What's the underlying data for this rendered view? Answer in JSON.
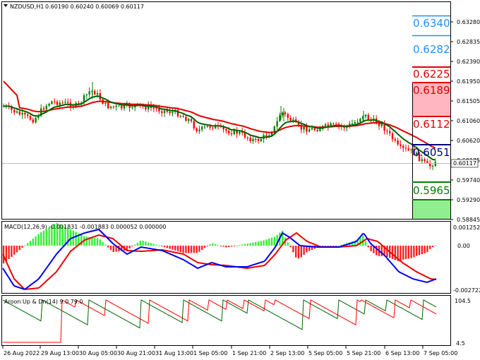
{
  "main_header": {
    "symbol": "NZDUSD,H1",
    "ohlc": "0.60190 0.60240 0.60069 0.60117"
  },
  "macd_header": "MACD(12,26,9) -0.001831 -0.001883 0.000052 0.000000",
  "aroon_header": "Aroon Up & Dn(14) 9.0 79.0",
  "price_axis": {
    "ticks": [
      "0.63280",
      "0.62835",
      "0.62390",
      "0.61950",
      "0.61505",
      "0.61060",
      "0.60620",
      "0.60175",
      "0.59740",
      "0.59290",
      "0.58845"
    ],
    "current": "0.60117"
  },
  "macd_axis": [
    "0.001252",
    "0.00",
    "-0.002722"
  ],
  "aroon_axis": [
    "104.5",
    "4.5"
  ],
  "time_axis": [
    "26 Aug 2022",
    "29 Aug 13:00",
    "30 Aug 05:00",
    "30 Aug 21:00",
    "31 Aug 13:00",
    "1 Sep 05:00",
    "1 Sep 21:00",
    "2 Sep 13:00",
    "5 Sep 05:00",
    "5 Sep 21:00",
    "6 Sep 13:00",
    "7 Sep 05:00"
  ],
  "levels": [
    {
      "label": "0.6340",
      "color": "#1e90ff"
    },
    {
      "label": "0.6282",
      "color": "#1e90ff"
    },
    {
      "label": "0.6225",
      "color": "#e00000"
    },
    {
      "label": "0.6189",
      "color": "#e00000"
    },
    {
      "label": "0.6112",
      "color": "#e00000"
    },
    {
      "label": "0.6051",
      "color": "#000080"
    },
    {
      "label": "0.5965",
      "color": "#008000"
    }
  ],
  "colors": {
    "bull": "#008000",
    "bear": "#ff0000",
    "ma_fast": "#006400",
    "ma_slow": "#e00000",
    "macd_pos": "#33ee33",
    "macd_neg": "#ff2020",
    "macd_line": "#0000ee",
    "signal_line": "#ee0000",
    "aroon_up": "#ff0000",
    "aroon_dn": "#006400"
  }
}
